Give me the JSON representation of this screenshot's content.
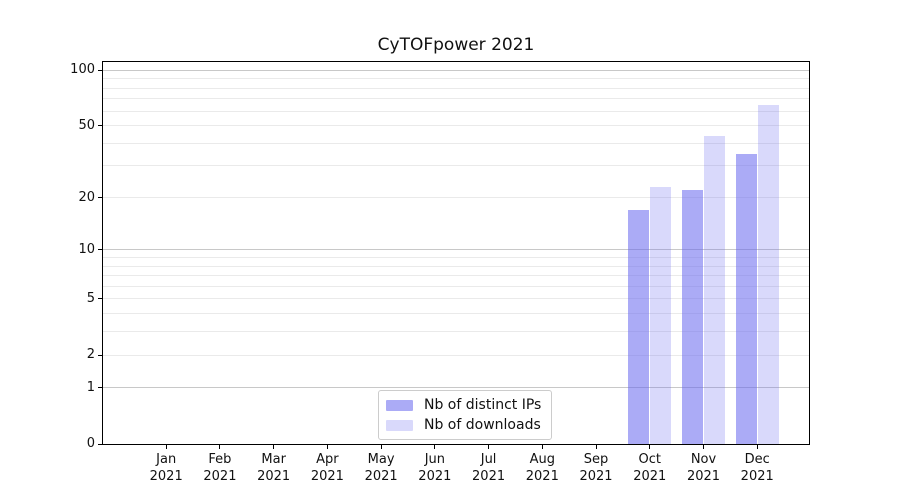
{
  "chart_data": {
    "type": "bar",
    "title": "CyTOFpower 2021",
    "categories": [
      "Jan",
      "Feb",
      "Mar",
      "Apr",
      "May",
      "Jun",
      "Jul",
      "Aug",
      "Sep",
      "Oct",
      "Nov",
      "Dec"
    ],
    "category_year": "2021",
    "series": [
      {
        "name": "Nb of distinct IPs",
        "color": "rgba(102,102,238,0.55)",
        "values": [
          0,
          0,
          0,
          0,
          0,
          0,
          0,
          0,
          0,
          17,
          22,
          35
        ]
      },
      {
        "name": "Nb of downloads",
        "color": "rgba(102,102,238,0.25)",
        "values": [
          0,
          0,
          0,
          0,
          0,
          0,
          0,
          0,
          0,
          23,
          44,
          65
        ]
      }
    ],
    "y_scale": "log1p",
    "ylim": [
      0,
      111
    ],
    "y_ticks": [
      0,
      1,
      2,
      5,
      10,
      20,
      50,
      100
    ],
    "gridlines_minor": [
      2,
      3,
      4,
      5,
      6,
      7,
      8,
      9,
      20,
      30,
      40,
      50,
      60,
      70,
      80,
      90
    ],
    "gridlines_major": [
      1,
      10,
      100
    ],
    "grid": "on",
    "xlabel": "",
    "ylabel": "",
    "legend_position": "bottom-center",
    "colors": {
      "axis": "#000000",
      "grid_minor": "#eaeaea",
      "grid_major": "#c8c8c8",
      "background": "#ffffff",
      "legend_border": "#cccccc"
    }
  }
}
